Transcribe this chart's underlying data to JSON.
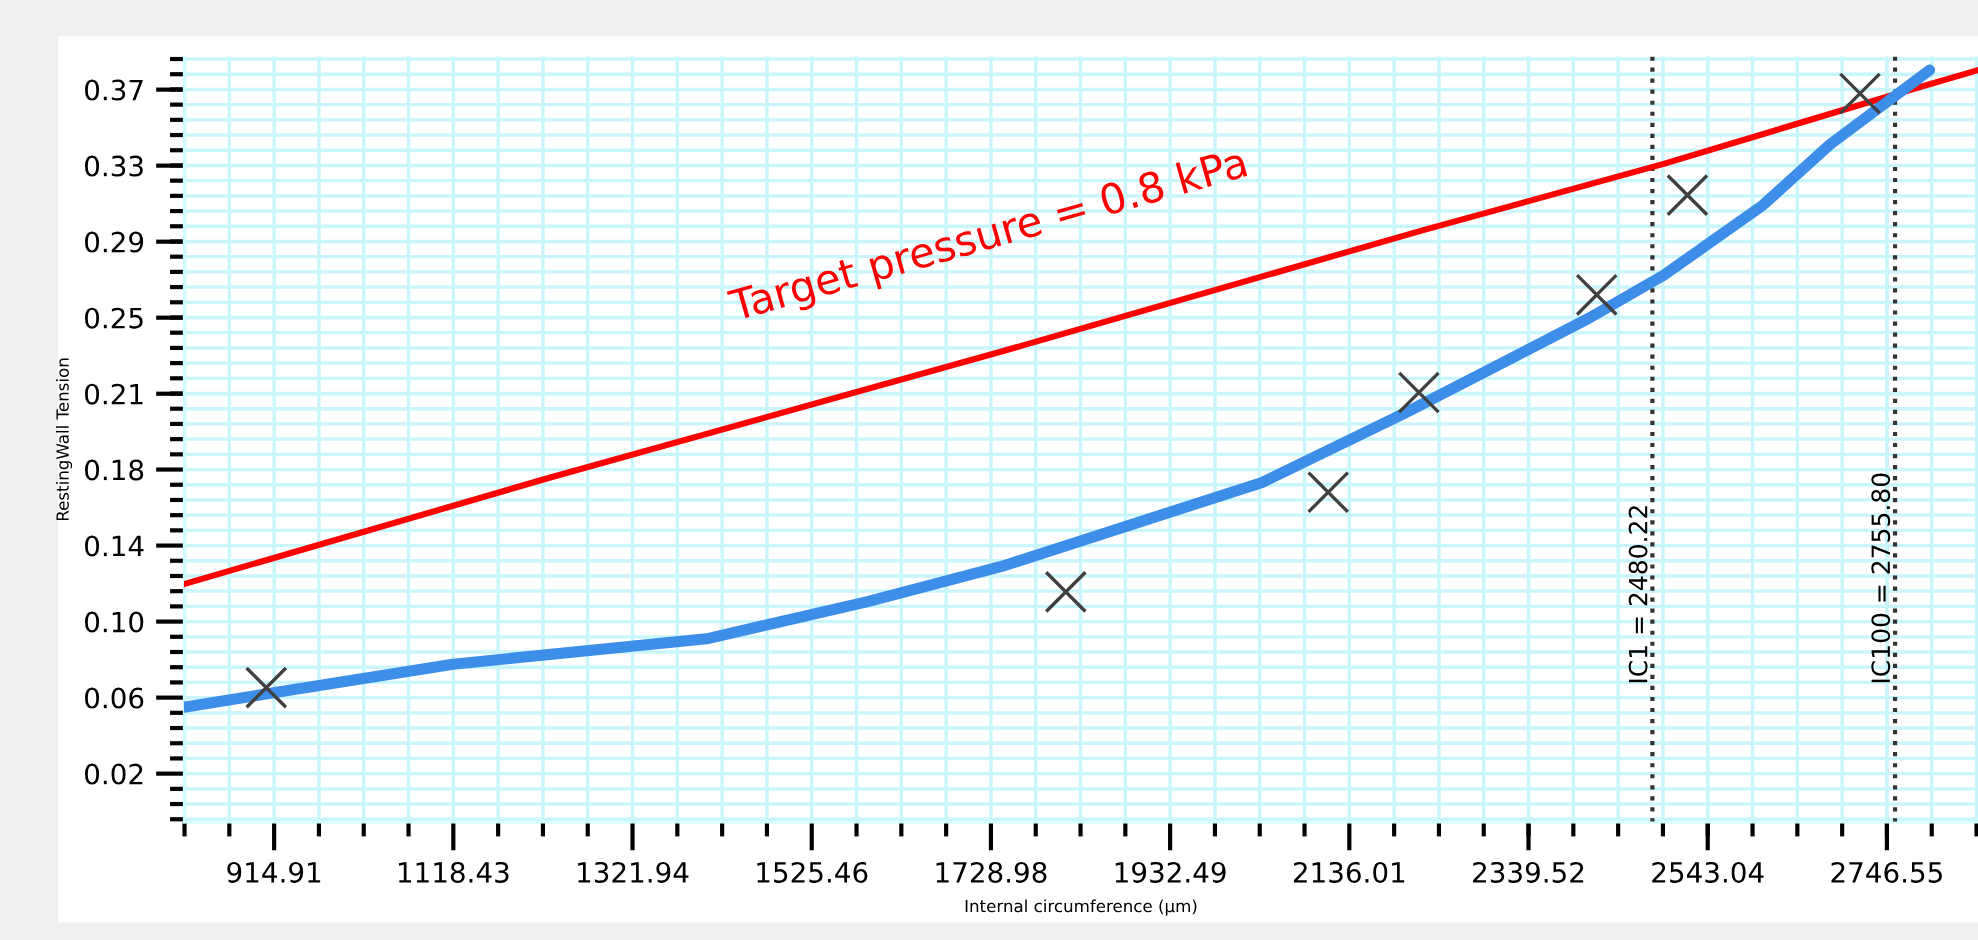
{
  "chart_data": {
    "type": "line",
    "xlabel": "Internal circumference (µm)",
    "ylabel": "RestingWall Tension",
    "xlim": [
      812.5,
      2850
    ],
    "ylim": [
      -0.005,
      0.387
    ],
    "xticks": [
      914.91,
      1118.43,
      1321.94,
      1525.46,
      1728.98,
      1932.49,
      2136.01,
      2339.52,
      2543.04,
      2746.55
    ],
    "yticks": [
      0.02,
      {
        "value": 0.0589,
        "label": "0.06"
      },
      {
        "value": 0.0978,
        "label": "0.10"
      },
      {
        "value": 0.1367,
        "label": "0.14"
      },
      {
        "value": 0.1756,
        "label": "0.18"
      },
      {
        "value": 0.2144,
        "label": "0.21"
      },
      {
        "value": 0.2533,
        "label": "0.25"
      },
      {
        "value": 0.2922,
        "label": "0.29"
      },
      {
        "value": 0.3311,
        "label": "0.33"
      },
      0.37
    ],
    "grid": true,
    "legend": false,
    "series": [
      {
        "name": "Target pressure = 0.8 kPa",
        "color": "#ff0000",
        "x": [
          812.5,
          1224.5,
          1741,
          2219,
          2493,
          2759,
          2850
        ],
        "values": [
          0.117,
          0.171,
          0.236,
          0.298,
          0.332,
          0.368,
          0.38
        ]
      },
      {
        "color": "#3d8ee8",
        "x": [
          812.5,
          1118,
          1406,
          1589,
          1741,
          2037,
          2197,
          2408,
          2493,
          2606,
          2682,
          2795
        ],
        "values": [
          0.054,
          0.076,
          0.089,
          0.108,
          0.126,
          0.169,
          0.204,
          0.253,
          0.275,
          0.311,
          0.342,
          0.38
        ]
      },
      {
        "type": "scatter",
        "color": "#404040",
        "marker": "cross",
        "x": [
          906,
          1814,
          2112,
          2215,
          2417,
          2520,
          2716
        ],
        "values": [
          0.064,
          0.113,
          0.164,
          0.215,
          0.265,
          0.316,
          0.368
        ]
      }
    ],
    "ref_lines": [
      {
        "axis": "x",
        "value": 2480.22,
        "label": "IC1 = 2480.22",
        "color": "#333333",
        "line_style": "dotted"
      },
      {
        "axis": "x",
        "value": 2755.8,
        "label": "IC100 = 2755.80",
        "color": "#333333",
        "line_style": "dotted"
      }
    ]
  }
}
